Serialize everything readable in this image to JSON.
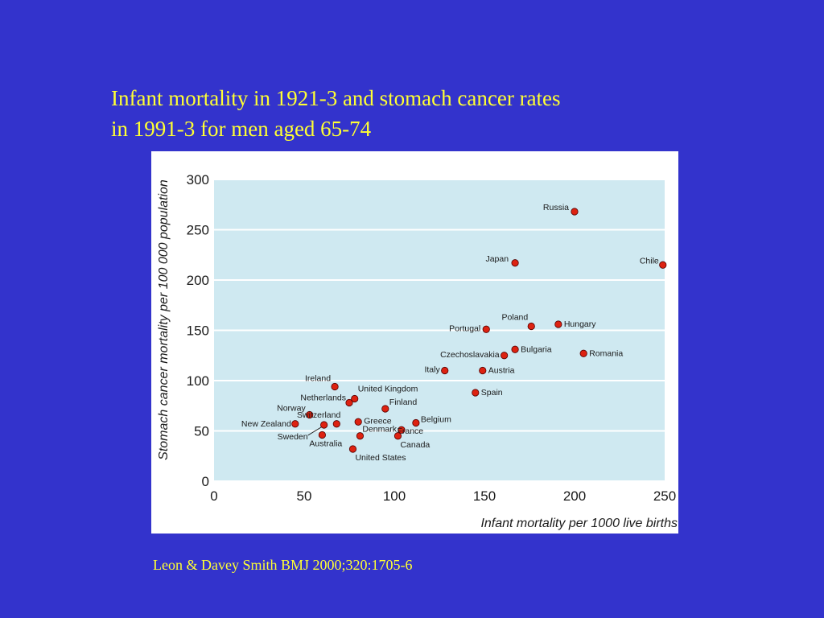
{
  "slide": {
    "title_line1": "Infant mortality in 1921-3 and stomach cancer rates",
    "title_line2": "in 1991-3 for men aged 65-74",
    "citation": "Leon & Davey Smith BMJ 2000;320:1705-6"
  },
  "colors": {
    "background": "#3333cc",
    "title_text": "#ffff33",
    "plot_area": "#cfe9f1",
    "gridline": "#ffffff",
    "marker_fill": "#dd2211",
    "marker_stroke": "#550000"
  },
  "chart_data": {
    "type": "scatter",
    "xlabel": "Infant mortality per 1000 live births",
    "ylabel": "Stomach cancer mortality per 100 000 population",
    "xlim": [
      0,
      250
    ],
    "ylim": [
      0,
      300
    ],
    "xticks": [
      0,
      50,
      100,
      150,
      200,
      250
    ],
    "yticks": [
      0,
      50,
      100,
      150,
      200,
      250,
      300
    ],
    "grid": "horizontal",
    "points": [
      {
        "label": "Russia",
        "x": 200,
        "y": 268
      },
      {
        "label": "Chile",
        "x": 249,
        "y": 215
      },
      {
        "label": "Japan",
        "x": 167,
        "y": 217
      },
      {
        "label": "Poland",
        "x": 176,
        "y": 154
      },
      {
        "label": "Hungary",
        "x": 191,
        "y": 156
      },
      {
        "label": "Portugal",
        "x": 151,
        "y": 151
      },
      {
        "label": "Romania",
        "x": 205,
        "y": 127
      },
      {
        "label": "Bulgaria",
        "x": 167,
        "y": 131
      },
      {
        "label": "Czechoslavakia",
        "x": 161,
        "y": 125
      },
      {
        "label": "Italy",
        "x": 128,
        "y": 110
      },
      {
        "label": "Austria",
        "x": 149,
        "y": 110
      },
      {
        "label": "Spain",
        "x": 145,
        "y": 88
      },
      {
        "label": "Ireland",
        "x": 67,
        "y": 94
      },
      {
        "label": "United Kingdom",
        "x": 78,
        "y": 82
      },
      {
        "label": "Netherlands",
        "x": 75,
        "y": 78
      },
      {
        "label": "Finland",
        "x": 95,
        "y": 72
      },
      {
        "label": "Norway",
        "x": 53,
        "y": 66
      },
      {
        "label": "Switzerland",
        "x": 68,
        "y": 57
      },
      {
        "label": "Greece",
        "x": 80,
        "y": 59
      },
      {
        "label": "Belgium",
        "x": 112,
        "y": 58
      },
      {
        "label": "New Zealand",
        "x": 45,
        "y": 57
      },
      {
        "label": "Sweden",
        "x": 61,
        "y": 56
      },
      {
        "label": "Denmark",
        "x": 104,
        "y": 51
      },
      {
        "label": "Australia",
        "x": 60,
        "y": 46
      },
      {
        "label": "France",
        "x": 81,
        "y": 45
      },
      {
        "label": "Canada",
        "x": 102,
        "y": 45
      },
      {
        "label": "United States",
        "x": 77,
        "y": 32
      }
    ]
  }
}
